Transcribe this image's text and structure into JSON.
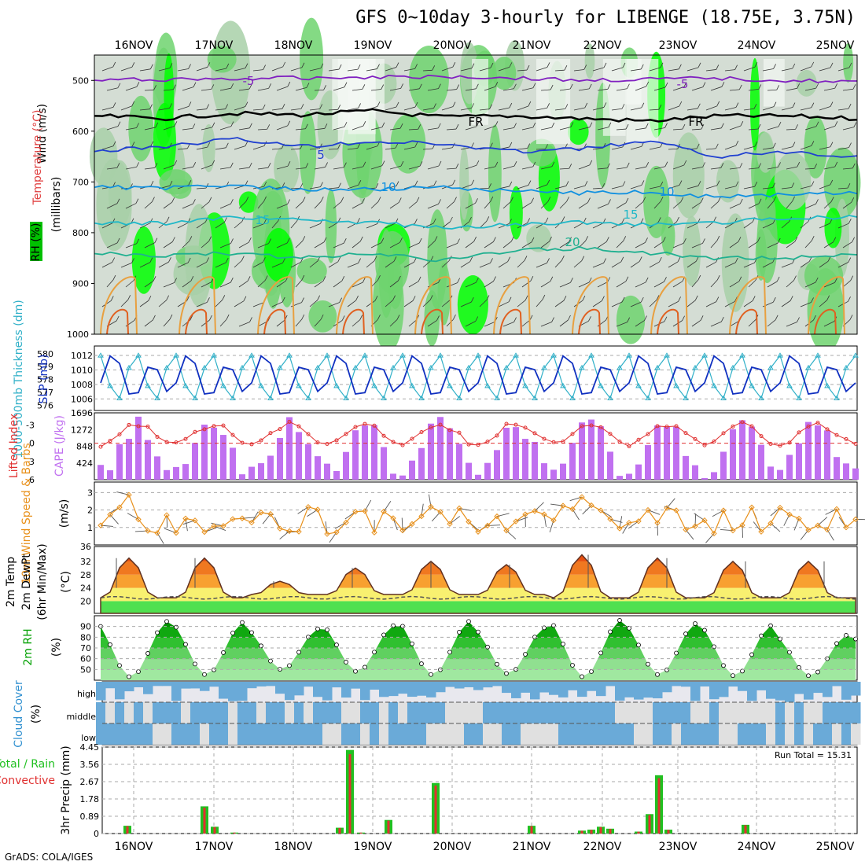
{
  "title": "GFS 0~10day 3-hourly for LIBENGE (18.75E, 3.75N)",
  "credit": "GrADS: COLA/IGES",
  "dates": [
    "16NOV",
    "17NOV",
    "18NOV",
    "19NOV",
    "20NOV",
    "21NOV",
    "22NOV",
    "23NOV",
    "24NOV",
    "25NOV"
  ],
  "colors": {
    "rh_light": "#c8d8c8",
    "rh_mid": "#6fd36f",
    "rh_high": "#00ff00",
    "slp": "#1030c0",
    "thickness": "#30b0c8",
    "lifted_index": "#e03030",
    "cape": "#c070f0",
    "wind_speed": "#e8901a",
    "barb": "#555555",
    "temp_warm": "#e85010",
    "temp_orange": "#f8a030",
    "temp_yellow": "#f8f070",
    "temp_green": "#50e050",
    "rh_area": "#00a000",
    "cloud": "#6aaad8",
    "cloud_clear": "#e0e0e0",
    "rain_total": "#20c020",
    "rain_conv": "#e03030"
  },
  "panels": {
    "upper": {
      "y_ticks": [
        "500",
        "600",
        "700",
        "800",
        "900",
        "1000"
      ],
      "label_wind": "Wind (m/s)",
      "label_temp": "Temperature (°C)",
      "label_mb": "(millibars)",
      "label_rh": "RH (%)",
      "contours": [
        {
          "label": "-5",
          "p": [
            500,
            498,
            497,
            495,
            493,
            492,
            495,
            500,
            498,
            496,
            500,
            503
          ],
          "color": "#8020c0"
        },
        {
          "label": "FR",
          "p": [
            570,
            575,
            565,
            568,
            560,
            572,
            570,
            575,
            580,
            570,
            570,
            575
          ],
          "color": "#000000"
        },
        {
          "label": "5",
          "p": [
            640,
            630,
            615,
            630,
            620,
            625,
            640,
            635,
            620,
            650,
            640,
            650
          ],
          "color": "#2040d0"
        },
        {
          "label": "10",
          "p": [
            710,
            712,
            708,
            715,
            715,
            710,
            718,
            722,
            720,
            730,
            725,
            720
          ],
          "color": "#1090e0"
        },
        {
          "label": "15",
          "p": [
            780,
            782,
            770,
            775,
            780,
            790,
            785,
            780,
            785,
            780,
            770,
            770
          ],
          "color": "#20b8c8"
        },
        {
          "label": "20",
          "p": [
            840,
            845,
            840,
            850,
            840,
            855,
            835,
            830,
            840,
            850,
            850,
            840
          ],
          "color": "#20b090"
        }
      ],
      "contour_labels_text": [
        "-5",
        "-5",
        "FR",
        "FR",
        "5",
        "10",
        "10",
        "15",
        "15",
        "20"
      ]
    },
    "slp_thk": {
      "label_thk": "1000-500mb Thickness (dm)",
      "label_slp": "SLP (mb)",
      "thk_ticks": [
        "580",
        "579",
        "578",
        "577",
        "576"
      ],
      "slp_ticks": [
        "1012",
        "1010",
        "1008",
        "1006"
      ]
    },
    "li_cape": {
      "label_li": "Lifted Index",
      "label_cape": "CAPE (J/kg)",
      "li_ticks": [
        "-3",
        "0",
        "3",
        "6"
      ],
      "cape_ticks": [
        "1696",
        "1272",
        "848",
        "424"
      ]
    },
    "wind10": {
      "label": "10m Wind Speed & Barbs",
      "unit": "(m/s)",
      "ticks": [
        "3",
        "2",
        "1"
      ]
    },
    "temp2m": {
      "label1": "2m Temp",
      "label2": "2m DewPt",
      "label3": "(6hr Min/Max)",
      "unit": "(°C)",
      "ticks": [
        "32",
        "28",
        "24",
        "20"
      ],
      "top_tick": "36"
    },
    "rh2m": {
      "label": "2m RH",
      "unit": "(%)",
      "ticks": [
        "90",
        "80",
        "70",
        "60",
        "50"
      ]
    },
    "cloud": {
      "label": "Cloud Cover",
      "unit": "(%)",
      "levels": [
        "high",
        "middle",
        "low"
      ]
    },
    "precip": {
      "label_total": "Total / Rain",
      "label_conv": "Convective",
      "label_unit": "3hr Precip (mm)",
      "ticks": [
        "4.45",
        "3.56",
        "2.67",
        "1.78",
        "0.89",
        "0"
      ],
      "run_total": "Run Total = 15.31"
    }
  },
  "chart_data": {
    "type": "line",
    "title": "GFS 0~10day 3-hourly for LIBENGE (18.75E, 3.75N)",
    "x": [
      "16NOV",
      "17NOV",
      "18NOV",
      "19NOV",
      "20NOV",
      "21NOV",
      "22NOV",
      "23NOV",
      "24NOV",
      "25NOV"
    ],
    "series": [
      {
        "name": "2m Temp (°C) daily max",
        "values": [
          33,
          33,
          26,
          30,
          32,
          31,
          34,
          33,
          32,
          32
        ]
      },
      {
        "name": "2m Temp (°C) daily min",
        "values": [
          21,
          21,
          22,
          22,
          22,
          22,
          21,
          21,
          21,
          21
        ]
      },
      {
        "name": "2m RH (%) daily max",
        "values": [
          95,
          94,
          88,
          91,
          95,
          89,
          96,
          93,
          91,
          82
        ]
      },
      {
        "name": "2m RH (%) daily min",
        "values": [
          43,
          45,
          50,
          48,
          45,
          46,
          43,
          45,
          44,
          44
        ]
      },
      {
        "name": "SLP (mb) daily max",
        "values": [
          1012,
          1011,
          1012,
          1011,
          1011,
          1011,
          1012,
          1013,
          1012,
          1012
        ]
      },
      {
        "name": "3hr Precip (mm) daily max",
        "values": [
          0.4,
          1.4,
          0.1,
          4.3,
          2.6,
          0.4,
          0.4,
          3.0,
          0.5,
          0.0
        ]
      }
    ],
    "precip_run_total": 15.31,
    "precip_ylim": [
      0,
      4.45
    ],
    "temp_ylim": [
      16,
      36
    ],
    "rh_ylim": [
      40,
      100
    ],
    "cape_ylim": [
      0,
      1696
    ],
    "li_ylim": [
      6,
      -5
    ],
    "pressure_ylim": [
      1000,
      450
    ]
  }
}
